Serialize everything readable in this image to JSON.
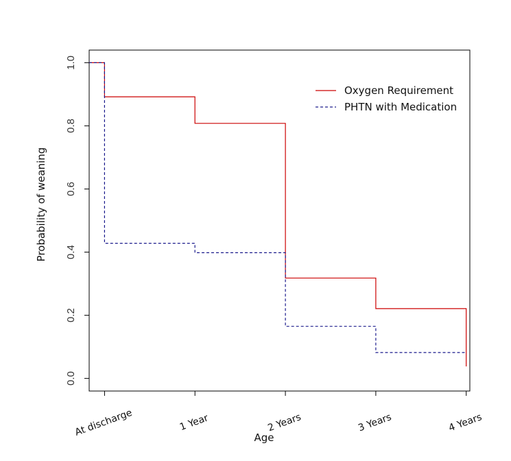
{
  "chart_data": {
    "type": "line",
    "step": true,
    "title": "",
    "xlabel": "Age",
    "ylabel": "Probability of weaning",
    "categories": [
      "At discharge",
      "1 Year",
      "2 Years",
      "3 Years",
      "4 Years"
    ],
    "x": [
      0,
      1,
      2,
      3,
      4
    ],
    "xlim": [
      -0.17,
      4.04
    ],
    "ylim": [
      -0.04,
      1.04
    ],
    "yticks": [
      0.0,
      0.2,
      0.4,
      0.6,
      0.8,
      1.0
    ],
    "ytick_labels": [
      "0.0",
      "0.2",
      "0.4",
      "0.6",
      "0.8",
      "1.0"
    ],
    "grid": false,
    "legend_position": "top-right",
    "series": [
      {
        "name": "Oxygen Requirement",
        "color": "#cc0000",
        "line_style": "solid",
        "points": [
          {
            "x": -0.17,
            "y": 1.0
          },
          {
            "x": 0,
            "y": 1.0
          },
          {
            "x": 0,
            "y": 0.892
          },
          {
            "x": 1,
            "y": 0.892
          },
          {
            "x": 1,
            "y": 0.808
          },
          {
            "x": 2,
            "y": 0.808
          },
          {
            "x": 2,
            "y": 0.318
          },
          {
            "x": 3,
            "y": 0.318
          },
          {
            "x": 3,
            "y": 0.221
          },
          {
            "x": 4,
            "y": 0.221
          },
          {
            "x": 4,
            "y": 0.038
          }
        ]
      },
      {
        "name": "PHTN with Medication",
        "color": "#1a1a8c",
        "line_style": "dashed",
        "points": [
          {
            "x": -0.17,
            "y": 1.0
          },
          {
            "x": 0,
            "y": 1.0
          },
          {
            "x": 0,
            "y": 0.428
          },
          {
            "x": 1,
            "y": 0.428
          },
          {
            "x": 1,
            "y": 0.398
          },
          {
            "x": 2,
            "y": 0.398
          },
          {
            "x": 2,
            "y": 0.165
          },
          {
            "x": 3,
            "y": 0.165
          },
          {
            "x": 3,
            "y": 0.082
          },
          {
            "x": 4,
            "y": 0.082
          }
        ]
      }
    ]
  }
}
